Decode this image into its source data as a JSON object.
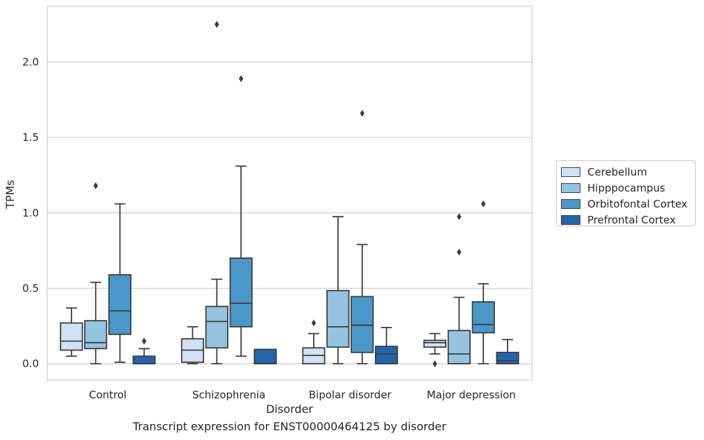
{
  "chart_data": {
    "type": "box",
    "title": "",
    "caption": "Transcript expression for ENST00000464125 by disorder",
    "xlabel": "Disorder",
    "ylabel": "TPMs",
    "ylim": [
      -0.11,
      2.37
    ],
    "yticks": [
      0.0,
      0.5,
      1.0,
      1.5,
      2.0
    ],
    "ytick_labels": [
      "0.0",
      "0.5",
      "1.0",
      "1.5",
      "2.0"
    ],
    "grid": "horizontal",
    "legend_position": "right",
    "categories": [
      "Control",
      "Schizophrenia",
      "Bipolar disorder",
      "Major depression"
    ],
    "series": [
      {
        "name": "Cerebellum",
        "color": "#d0e1f2",
        "boxes": [
          {
            "whislo": 0.05,
            "q1": 0.09,
            "med": 0.15,
            "q3": 0.27,
            "whishi": 0.37,
            "fliers": []
          },
          {
            "whislo": 0.0,
            "q1": 0.01,
            "med": 0.09,
            "q3": 0.165,
            "whishi": 0.245,
            "fliers": []
          },
          {
            "whislo": 0.0,
            "q1": 0.0,
            "med": 0.055,
            "q3": 0.105,
            "whishi": 0.2,
            "fliers": [
              0.27
            ]
          },
          {
            "whislo": 0.065,
            "q1": 0.11,
            "med": 0.14,
            "q3": 0.155,
            "whishi": 0.2,
            "fliers": [
              0.0
            ]
          }
        ]
      },
      {
        "name": "Hipppocampus",
        "color": "#94c4df",
        "boxes": [
          {
            "whislo": 0.0,
            "q1": 0.1,
            "med": 0.14,
            "q3": 0.285,
            "whishi": 0.54,
            "fliers": [
              1.18
            ]
          },
          {
            "whislo": 0.0,
            "q1": 0.105,
            "med": 0.28,
            "q3": 0.38,
            "whishi": 0.56,
            "fliers": [
              2.25
            ]
          },
          {
            "whislo": 0.0,
            "q1": 0.11,
            "med": 0.245,
            "q3": 0.485,
            "whishi": 0.975,
            "fliers": []
          },
          {
            "whislo": 0.0,
            "q1": 0.0,
            "med": 0.065,
            "q3": 0.22,
            "whishi": 0.44,
            "fliers": [
              0.74,
              0.975
            ]
          }
        ]
      },
      {
        "name": "Orbitofontal Cortex",
        "color": "#4a98c9",
        "boxes": [
          {
            "whislo": 0.01,
            "q1": 0.195,
            "med": 0.35,
            "q3": 0.59,
            "whishi": 1.06,
            "fliers": []
          },
          {
            "whislo": 0.05,
            "q1": 0.245,
            "med": 0.4,
            "q3": 0.7,
            "whishi": 1.31,
            "fliers": [
              1.89
            ]
          },
          {
            "whislo": 0.0,
            "q1": 0.075,
            "med": 0.255,
            "q3": 0.445,
            "whishi": 0.79,
            "fliers": [
              1.66
            ]
          },
          {
            "whislo": 0.0,
            "q1": 0.205,
            "med": 0.26,
            "q3": 0.41,
            "whishi": 0.53,
            "fliers": [
              1.06
            ]
          }
        ]
      },
      {
        "name": "Prefrontal Cortex",
        "color": "#2265ac",
        "boxes": [
          {
            "whislo": 0.0,
            "q1": 0.0,
            "med": 0.0,
            "q3": 0.05,
            "whishi": 0.1,
            "fliers": [
              0.15
            ]
          },
          {
            "whislo": 0.0,
            "q1": 0.0,
            "med": 0.0,
            "q3": 0.095,
            "whishi": 0.095,
            "fliers": []
          },
          {
            "whislo": 0.0,
            "q1": 0.0,
            "med": 0.065,
            "q3": 0.115,
            "whishi": 0.24,
            "fliers": []
          },
          {
            "whislo": 0.0,
            "q1": 0.0,
            "med": 0.02,
            "q3": 0.075,
            "whishi": 0.16,
            "fliers": []
          }
        ]
      }
    ]
  }
}
